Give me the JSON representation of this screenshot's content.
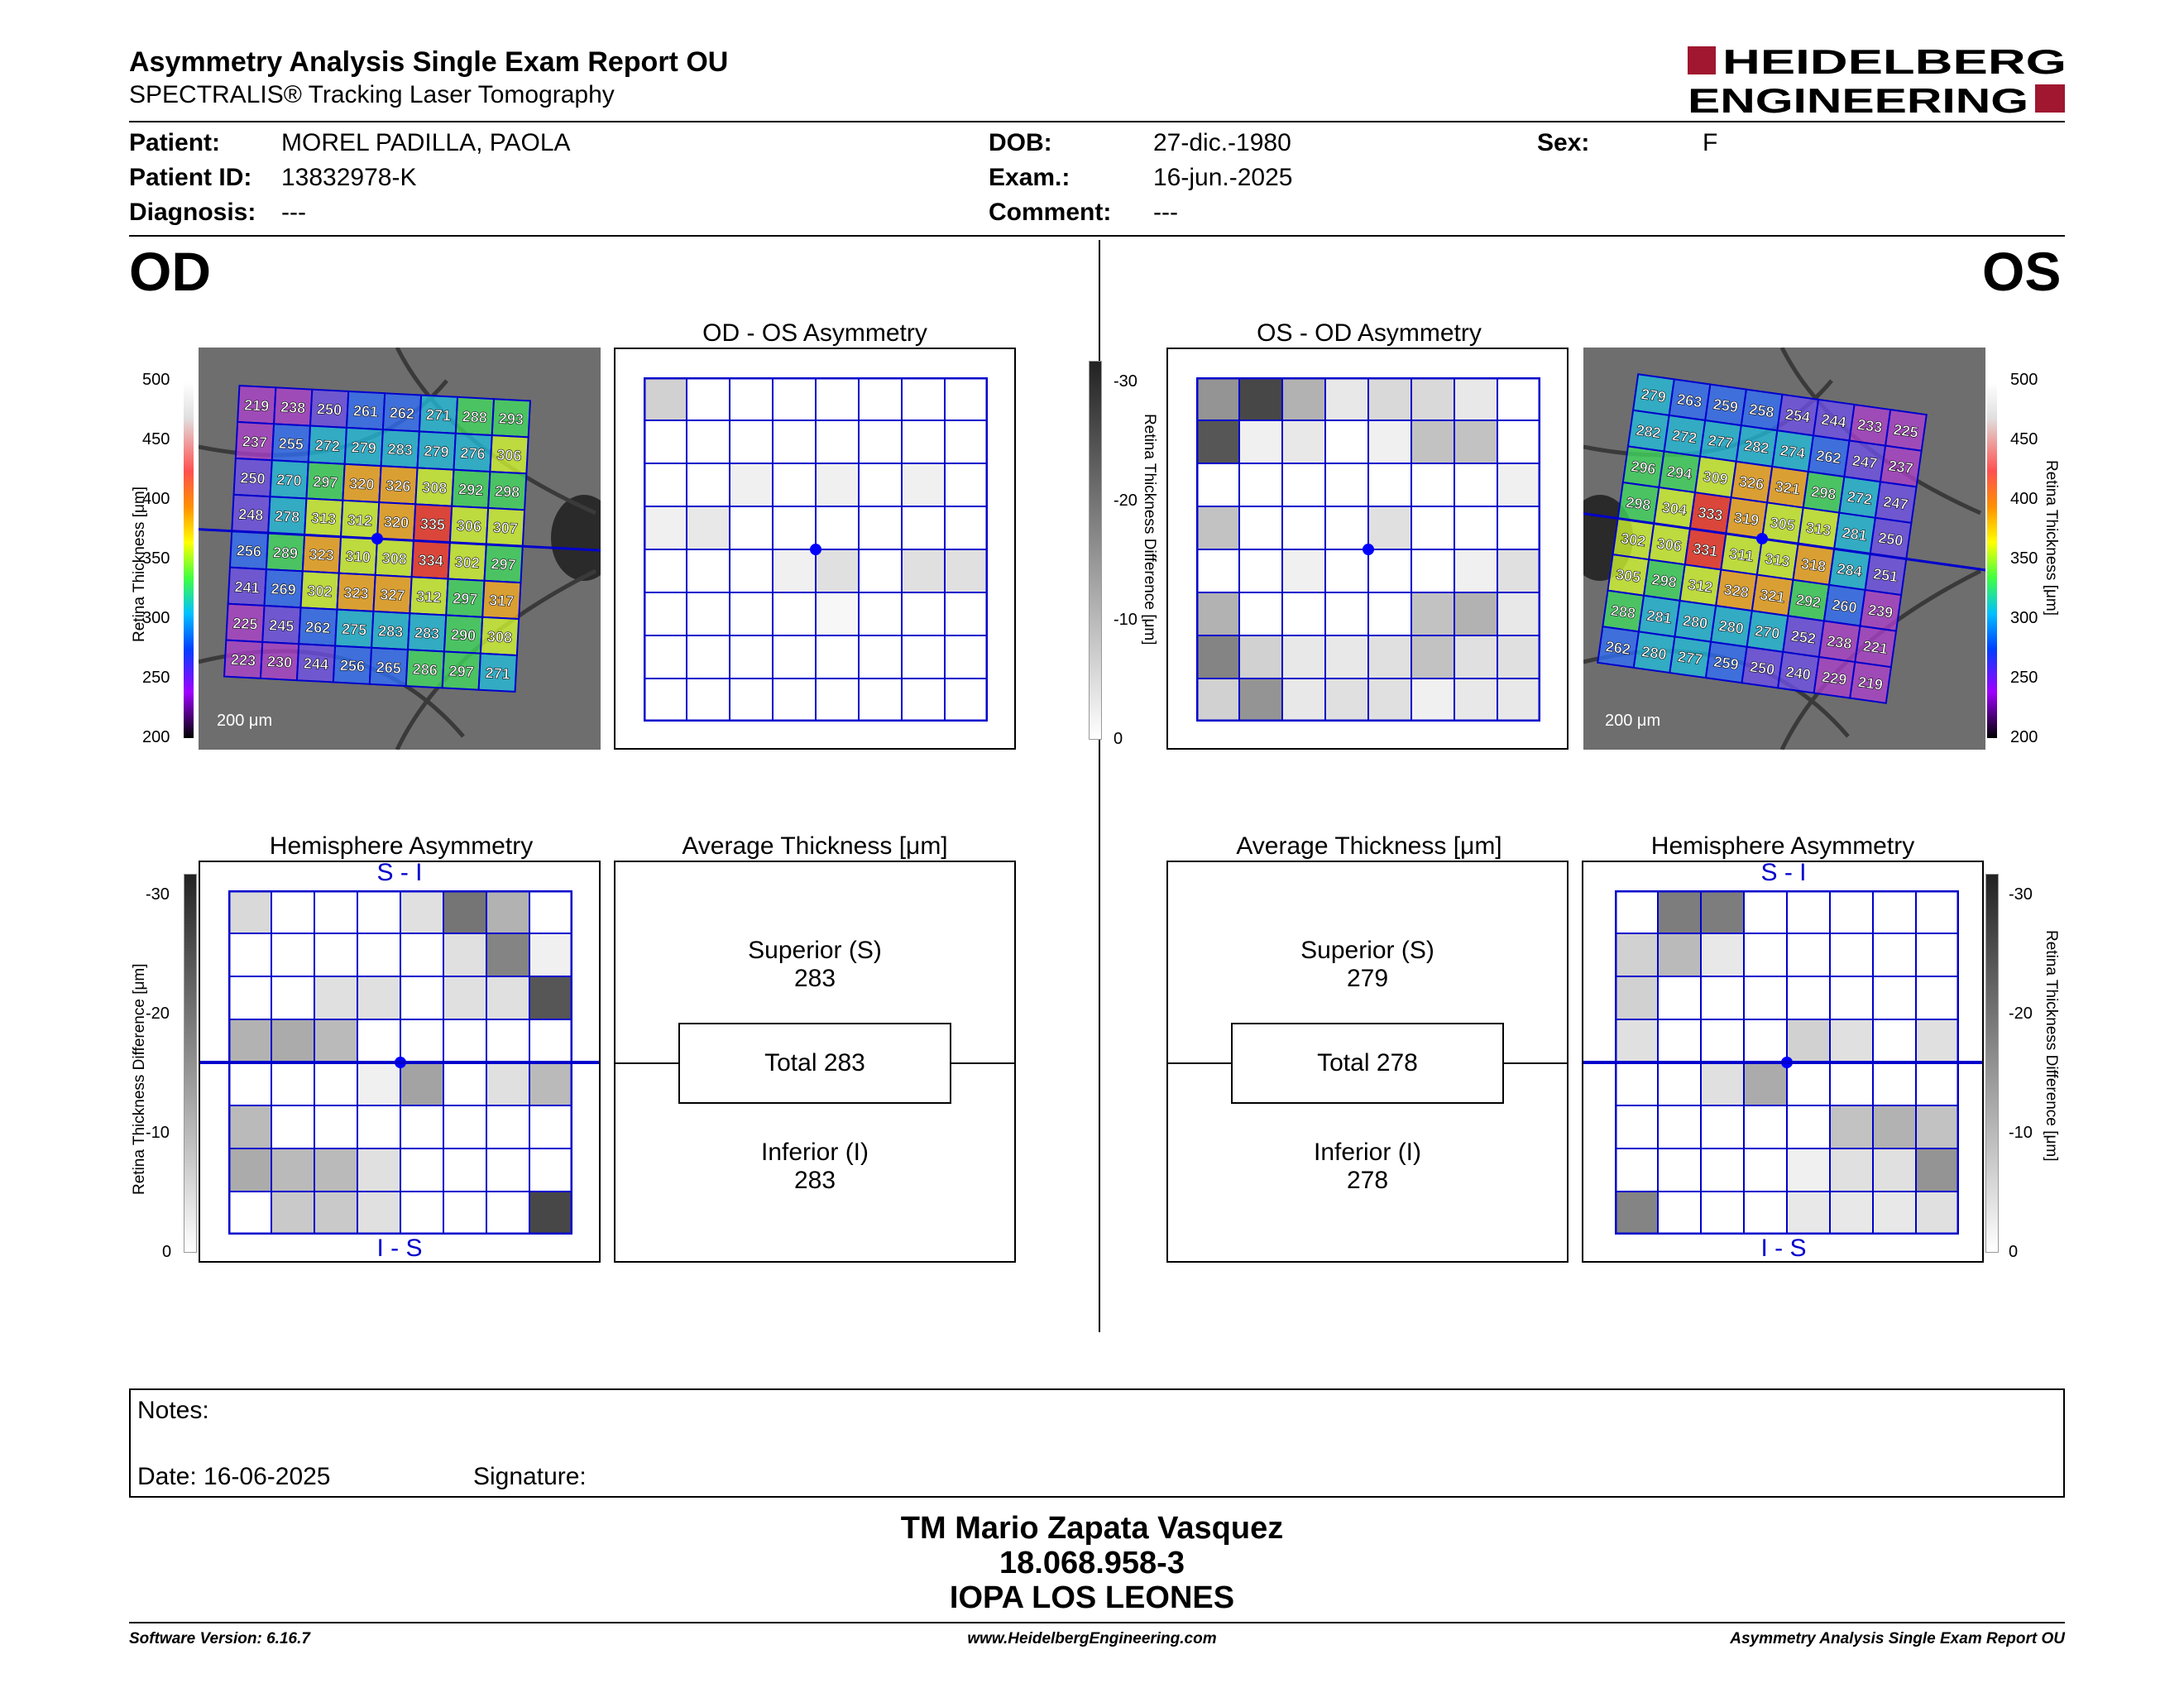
{
  "header": {
    "title": "Asymmetry Analysis Single Exam Report OU",
    "subtitle": "SPECTRALIS® Tracking Laser Tomography",
    "logo_line1": "HEIDELBERG",
    "logo_line2": "ENGINEERING",
    "brand_color": "#a0172f"
  },
  "patient": {
    "patient_label": "Patient:",
    "patient_value": "MOREL PADILLA, PAOLA",
    "id_label": "Patient ID:",
    "id_value": "13832978-K",
    "diagnosis_label": "Diagnosis:",
    "diagnosis_value": "---",
    "dob_label": "DOB:",
    "dob_value": "27-dic.-1980",
    "exam_label": "Exam.:",
    "exam_value": "16-jun.-2025",
    "comment_label": "Comment:",
    "comment_value": "---",
    "sex_label": "Sex:",
    "sex_value": "F"
  },
  "od": {
    "eye_label": "OD",
    "thickness_axis_label": "Retina Thickness [μm]",
    "thickness_ticks": [
      "500",
      "450",
      "400",
      "350",
      "300",
      "250",
      "200"
    ],
    "scale_label": "200 μm",
    "thickness_grid": [
      [
        219,
        238,
        250,
        261,
        262,
        271,
        288,
        293
      ],
      [
        237,
        255,
        272,
        279,
        283,
        279,
        276,
        306
      ],
      [
        250,
        270,
        297,
        320,
        326,
        308,
        292,
        298
      ],
      [
        248,
        278,
        313,
        312,
        320,
        335,
        306,
        307
      ],
      [
        256,
        289,
        323,
        310,
        308,
        334,
        302,
        297
      ],
      [
        241,
        269,
        302,
        323,
        327,
        312,
        297,
        317
      ],
      [
        225,
        245,
        262,
        275,
        283,
        283,
        290,
        308
      ],
      [
        223,
        230,
        244,
        256,
        265,
        286,
        297,
        271
      ]
    ],
    "asym_title": "OD - OS Asymmetry",
    "asym_grid": [
      [
        6,
        0,
        0,
        0,
        0,
        0,
        0,
        0
      ],
      [
        0,
        0,
        0,
        0,
        0,
        0,
        0,
        0
      ],
      [
        0,
        0,
        2,
        0,
        2,
        0,
        2,
        0
      ],
      [
        2,
        3,
        0,
        0,
        0,
        0,
        0,
        0
      ],
      [
        0,
        0,
        0,
        2,
        4,
        0,
        4,
        4
      ],
      [
        0,
        0,
        0,
        0,
        1,
        0,
        0,
        0
      ],
      [
        0,
        0,
        0,
        0,
        0,
        0,
        0,
        0
      ],
      [
        0,
        0,
        0,
        0,
        0,
        0,
        0,
        0
      ]
    ],
    "hemi_title": "Hemisphere Asymmetry",
    "hemi_top": "S - I",
    "hemi_bottom": "I - S",
    "hemi_axis_label": "Retina Thickness Difference [μm]",
    "hemi_ticks": [
      "-30",
      "-20",
      "-10",
      "0"
    ],
    "hemi_grid": [
      [
        5,
        0,
        0,
        0,
        4,
        18,
        10,
        0
      ],
      [
        0,
        0,
        0,
        0,
        0,
        4,
        16,
        2
      ],
      [
        0,
        0,
        4,
        4,
        0,
        4,
        4,
        22
      ],
      [
        10,
        11,
        9,
        0,
        0,
        0,
        0,
        0
      ],
      [
        0,
        0,
        0,
        2,
        12,
        0,
        4,
        9
      ],
      [
        9,
        0,
        0,
        0,
        0,
        0,
        0,
        0
      ],
      [
        11,
        9,
        9,
        4,
        0,
        0,
        0,
        0
      ],
      [
        0,
        7,
        7,
        4,
        0,
        0,
        0,
        24
      ]
    ],
    "avg_title": "Average Thickness [μm]",
    "superior_label": "Superior (S)",
    "superior_value": "283",
    "total_label": "Total 283",
    "inferior_label": "Inferior (I)",
    "inferior_value": "283"
  },
  "os": {
    "eye_label": "OS",
    "thickness_axis_label": "Retina Thickness [μm]",
    "thickness_ticks": [
      "500",
      "450",
      "400",
      "350",
      "300",
      "250",
      "200"
    ],
    "scale_label": "200 μm",
    "thickness_grid": [
      [
        279,
        263,
        259,
        258,
        254,
        244,
        233,
        225
      ],
      [
        282,
        272,
        277,
        282,
        274,
        262,
        247,
        237
      ],
      [
        296,
        294,
        309,
        326,
        321,
        298,
        272,
        247
      ],
      [
        298,
        304,
        333,
        319,
        305,
        313,
        281,
        250
      ],
      [
        302,
        306,
        331,
        311,
        313,
        318,
        284,
        251
      ],
      [
        305,
        298,
        312,
        328,
        321,
        292,
        260,
        239
      ],
      [
        288,
        281,
        280,
        280,
        270,
        252,
        238,
        221
      ],
      [
        262,
        280,
        277,
        259,
        250,
        240,
        229,
        219
      ]
    ],
    "asym_title": "OS - OD Asymmetry",
    "asym_axis_label": "Retina Thickness Difference [μm]",
    "asym_ticks": [
      "-30",
      "-20",
      "-10",
      "0"
    ],
    "asym_grid": [
      [
        14,
        24,
        10,
        3,
        5,
        5,
        3,
        0
      ],
      [
        22,
        2,
        3,
        0,
        2,
        8,
        8,
        0
      ],
      [
        0,
        0,
        0,
        0,
        0,
        0,
        0,
        2
      ],
      [
        8,
        0,
        0,
        0,
        4,
        0,
        0,
        0
      ],
      [
        0,
        0,
        2,
        0,
        0,
        0,
        2,
        4
      ],
      [
        10,
        0,
        0,
        0,
        0,
        8,
        10,
        3
      ],
      [
        16,
        6,
        3,
        3,
        4,
        8,
        4,
        4
      ],
      [
        6,
        14,
        3,
        4,
        4,
        2,
        3,
        3
      ]
    ],
    "hemi_title": "Hemisphere Asymmetry",
    "hemi_top": "S - I",
    "hemi_bottom": "I - S",
    "hemi_axis_label": "Retina Thickness Difference [μm]",
    "hemi_ticks": [
      "-30",
      "-20",
      "-10",
      "0"
    ],
    "hemi_grid": [
      [
        0,
        17,
        17,
        0,
        0,
        0,
        0,
        0
      ],
      [
        6,
        9,
        3,
        0,
        0,
        0,
        0,
        0
      ],
      [
        6,
        0,
        0,
        0,
        0,
        0,
        0,
        0
      ],
      [
        4,
        0,
        0,
        0,
        6,
        4,
        0,
        4
      ],
      [
        0,
        0,
        4,
        11,
        0,
        0,
        0,
        0
      ],
      [
        0,
        0,
        0,
        0,
        0,
        8,
        10,
        8
      ],
      [
        0,
        0,
        0,
        0,
        2,
        4,
        4,
        14
      ],
      [
        16,
        0,
        0,
        0,
        3,
        3,
        3,
        4
      ]
    ],
    "avg_title": "Average Thickness [μm]",
    "superior_label": "Superior (S)",
    "superior_value": "279",
    "total_label": "Total 278",
    "inferior_label": "Inferior (I)",
    "inferior_value": "278"
  },
  "notes": {
    "notes_label": "Notes:",
    "date_label": "Date: 16-06-2025",
    "signature_label": "Signature:"
  },
  "signer": {
    "name": "TM Mario Zapata Vasquez",
    "id": "18.068.958-3",
    "institution": "IOPA LOS LEONES"
  },
  "footer": {
    "software": "Software Version: 6.16.7",
    "website": "www.HeidelbergEngineering.com",
    "report": "Asymmetry Analysis Single Exam Report OU"
  },
  "colors": {
    "grid_line": "#0000cc",
    "center_dot": "#0000ff"
  }
}
